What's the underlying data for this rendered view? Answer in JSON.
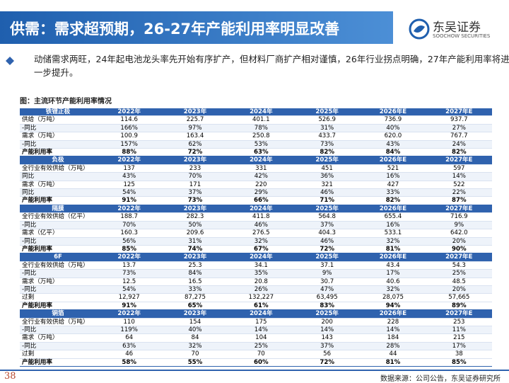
{
  "header": {
    "title": "供需：需求超预期，26-27年产能利用率明显改善",
    "logo_cn": "东吴证券",
    "logo_en": "SOOCHOW SECURITIES"
  },
  "bullet": "动储需求两旺，24年起电池龙头率先开始有序扩产，但材料厂商扩产相对谨慎，26年行业拐点明确，27年产能利用率将进一步提升。",
  "caption": "图：主流环节产能利用率情况",
  "table": {
    "sections": [
      {
        "header": [
          "铁锂正极",
          "2022年",
          "2023年",
          "2024年",
          "2025年",
          "2026年E",
          "2027年E"
        ],
        "rows": [
          [
            "供给（万吨）",
            "114.6",
            "225.7",
            "401.1",
            "526.9",
            "736.9",
            "937.7"
          ],
          [
            "-同比",
            "166%",
            "97%",
            "78%",
            "31%",
            "40%",
            "27%"
          ],
          [
            "需求（万吨）",
            "100.9",
            "163.4",
            "250.8",
            "433.7",
            "620.0",
            "767.7"
          ],
          [
            "-同比",
            "157%",
            "62%",
            "53%",
            "73%",
            "43%",
            "24%"
          ],
          [
            "产能利用率",
            "88%",
            "72%",
            "63%",
            "82%",
            "84%",
            "82%"
          ]
        ]
      },
      {
        "header": [
          "负极",
          "2022年",
          "2023年",
          "2024年",
          "2025年",
          "2026年E",
          "2027年E"
        ],
        "rows": [
          [
            "全行业有效供给（万吨）",
            "137",
            "233",
            "331",
            "451",
            "521",
            "597"
          ],
          [
            "同比",
            "43%",
            "70%",
            "42%",
            "36%",
            "16%",
            "14%"
          ],
          [
            "需求（万吨）",
            "125",
            "171",
            "220",
            "321",
            "427",
            "522"
          ],
          [
            "同比",
            "54%",
            "37%",
            "29%",
            "46%",
            "33%",
            "22%"
          ],
          [
            "产能利用率",
            "91%",
            "73%",
            "66%",
            "71%",
            "82%",
            "87%"
          ]
        ]
      },
      {
        "header": [
          "隔膜",
          "2022年",
          "2023年",
          "2024年",
          "2025年",
          "2026年E",
          "2027年E"
        ],
        "rows": [
          [
            "全行业有效供给（亿平）",
            "188.7",
            "282.3",
            "411.8",
            "564.8",
            "655.4",
            "716.9"
          ],
          [
            "-同比",
            "70%",
            "50%",
            "46%",
            "37%",
            "16%",
            "9%"
          ],
          [
            "需求（亿平）",
            "160.3",
            "209.6",
            "276.5",
            "404.3",
            "533.1",
            "642.0"
          ],
          [
            "-同比",
            "56%",
            "31%",
            "32%",
            "46%",
            "32%",
            "20%"
          ],
          [
            "产能利用率",
            "85%",
            "74%",
            "67%",
            "72%",
            "81%",
            "90%"
          ]
        ]
      },
      {
        "header": [
          "6F",
          "2022年",
          "2023年",
          "2024年",
          "2025年",
          "2026年E",
          "2027年E"
        ],
        "rows": [
          [
            "全行业有效供给（万吨）",
            "13.7",
            "25.3",
            "34.1",
            "37.1",
            "43.4",
            "54.3"
          ],
          [
            "-同比",
            "73%",
            "84%",
            "35%",
            "9%",
            "17%",
            "25%"
          ],
          [
            "需求（万吨）",
            "12.5",
            "16.5",
            "20.8",
            "30.7",
            "40.6",
            "48.5"
          ],
          [
            "-同比",
            "54%",
            "33%",
            "26%",
            "47%",
            "32%",
            "20%"
          ],
          [
            "过剩",
            "12,927",
            "87,275",
            "132,227",
            "63,495",
            "28,075",
            "57,665"
          ],
          [
            "产能利用率",
            "91%",
            "65%",
            "61%",
            "83%",
            "94%",
            "89%"
          ]
        ]
      },
      {
        "header": [
          "铜箔",
          "2022年",
          "2023年",
          "2024年",
          "2025年",
          "2026年E",
          "2027年E"
        ],
        "rows": [
          [
            "全行业有效供给（万吨）",
            "110",
            "154",
            "175",
            "200",
            "228",
            "253"
          ],
          [
            "-同比",
            "119%",
            "40%",
            "14%",
            "14%",
            "14%",
            "11%"
          ],
          [
            "需求（万吨）",
            "64",
            "84",
            "104",
            "143",
            "184",
            "215"
          ],
          [
            "-同比",
            "63%",
            "32%",
            "25%",
            "37%",
            "28%",
            "17%"
          ],
          [
            "过剩",
            "46",
            "70",
            "70",
            "56",
            "44",
            "38"
          ],
          [
            "产能利用率",
            "58%",
            "55%",
            "60%",
            "72%",
            "81%",
            "85%"
          ]
        ]
      }
    ]
  },
  "footer": {
    "page": "38",
    "source": "数据来源：公司公告，东吴证券研究所"
  }
}
